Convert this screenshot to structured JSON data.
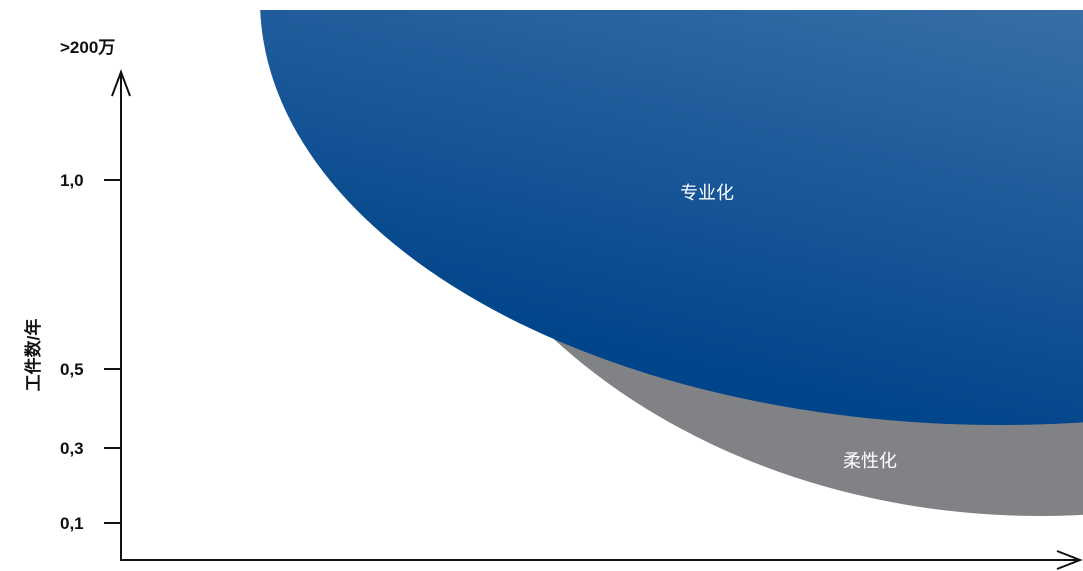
{
  "axis": {
    "y": {
      "label": "工件数/年",
      "top_label": ">200万",
      "ticks": [
        "1,0",
        "0,5",
        "0,3",
        "0,1"
      ]
    }
  },
  "regions": {
    "specialization": {
      "label": "专业化",
      "color_light": "#86a9cc",
      "color_mid": "#3d72aa",
      "color_dark": "#00448a"
    },
    "flexibility": {
      "label": "柔性化",
      "color": "#818286"
    }
  }
}
